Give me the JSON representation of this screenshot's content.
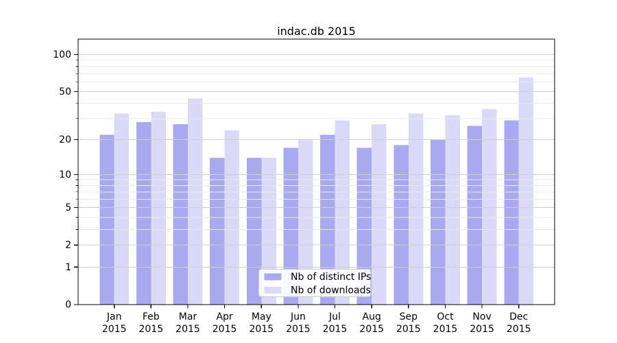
{
  "chart_data": {
    "type": "bar",
    "title": "indac.db 2015",
    "year": "2015",
    "months": [
      "Jan",
      "Feb",
      "Mar",
      "Apr",
      "May",
      "Jun",
      "Jul",
      "Aug",
      "Sep",
      "Oct",
      "Nov",
      "Dec"
    ],
    "series": [
      {
        "name": "Nb of distinct IPs",
        "color": "#a9a9f0",
        "values": [
          22,
          28,
          27,
          14,
          14,
          17,
          22,
          17,
          18,
          20,
          26,
          29
        ]
      },
      {
        "name": "Nb of downloads",
        "color": "#dadaf8",
        "values": [
          33,
          34,
          44,
          24,
          14,
          20,
          29,
          27,
          33,
          32,
          36,
          65
        ]
      }
    ],
    "yscale": "log1p",
    "ylim": [
      0,
      133
    ],
    "yticks_major": [
      0,
      1,
      2,
      5,
      10,
      20,
      50,
      100
    ],
    "yticks_minor": [
      3,
      4,
      6,
      7,
      8,
      9,
      30,
      40,
      60,
      70,
      80,
      90
    ],
    "grid": true,
    "legend": {
      "position": "lower center",
      "entries": [
        "Nb of distinct IPs",
        "Nb of downloads"
      ]
    },
    "colors": {
      "background": "#ffffff",
      "axis": "#000000",
      "grid_major": "#cfcfcf",
      "grid_minor": "#e9e9e9",
      "legend_border": "#cccccc",
      "legend_background": "#ffffff"
    }
  }
}
